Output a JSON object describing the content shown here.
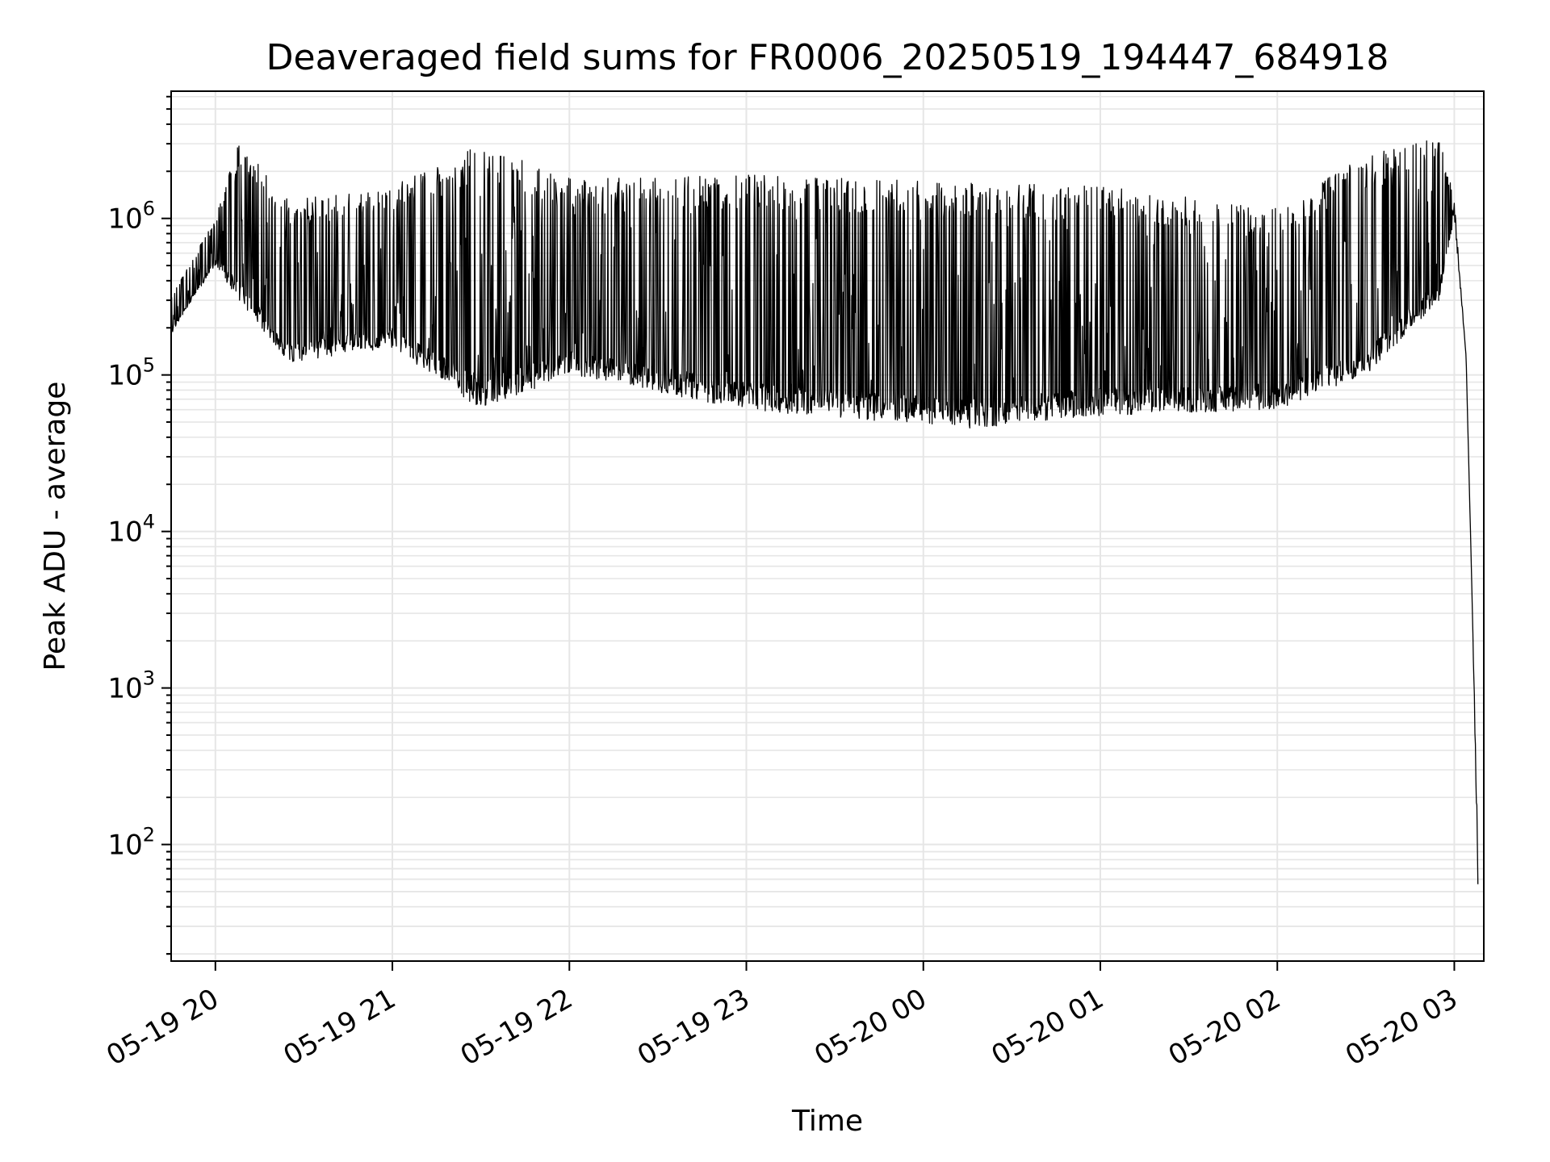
{
  "chart_data": {
    "type": "line",
    "title": "Deaveraged field sums for FR0006_20250519_194447_684918",
    "xlabel": "Time",
    "ylabel": "Peak ADU - average",
    "x_scale": "time",
    "y_scale": "log",
    "xlim": [
      "2025-05-19 19:45",
      "2025-05-20 03:10"
    ],
    "ylim": [
      18,
      6500000
    ],
    "grid": true,
    "line_color": "#000000",
    "x_ticks": [
      {
        "value": "2025-05-19 20:00",
        "label": "05-19 20"
      },
      {
        "value": "2025-05-19 21:00",
        "label": "05-19 21"
      },
      {
        "value": "2025-05-19 22:00",
        "label": "05-19 22"
      },
      {
        "value": "2025-05-19 23:00",
        "label": "05-19 23"
      },
      {
        "value": "2025-05-20 00:00",
        "label": "05-20 00"
      },
      {
        "value": "2025-05-20 01:00",
        "label": "05-20 01"
      },
      {
        "value": "2025-05-20 02:00",
        "label": "05-20 02"
      },
      {
        "value": "2025-05-20 03:00",
        "label": "05-20 03"
      }
    ],
    "y_ticks": [
      {
        "value": 100,
        "base": "10",
        "exp": "2"
      },
      {
        "value": 1000,
        "base": "10",
        "exp": "3"
      },
      {
        "value": 10000,
        "base": "10",
        "exp": "4"
      },
      {
        "value": 100000,
        "base": "10",
        "exp": "5"
      },
      {
        "value": 1000000,
        "base": "10",
        "exp": "6"
      }
    ],
    "series": [
      {
        "description_points": [
          {
            "x": "2025-05-19 19:45",
            "y_low": 180000,
            "y_high": 320000
          },
          {
            "x": "2025-05-19 19:52",
            "y_low": 300000,
            "y_high": 550000
          },
          {
            "x": "2025-05-19 20:00",
            "y_low": 500000,
            "y_high": 1000000
          },
          {
            "x": "2025-05-19 20:08",
            "y_low": 300000,
            "y_high": 3100000
          },
          {
            "x": "2025-05-19 20:25",
            "y_low": 120000,
            "y_high": 1300000
          },
          {
            "x": "2025-05-19 21:00",
            "y_low": 150000,
            "y_high": 1600000
          },
          {
            "x": "2025-05-19 21:30",
            "y_low": 60000,
            "y_high": 3000000
          },
          {
            "x": "2025-05-19 22:00",
            "y_low": 100000,
            "y_high": 1800000
          },
          {
            "x": "2025-05-19 23:00",
            "y_low": 60000,
            "y_high": 1900000
          },
          {
            "x": "2025-05-20 00:15",
            "y_low": 45000,
            "y_high": 1700000
          },
          {
            "x": "2025-05-20 01:00",
            "y_low": 55000,
            "y_high": 1600000
          },
          {
            "x": "2025-05-20 02:00",
            "y_low": 60000,
            "y_high": 1200000
          },
          {
            "x": "2025-05-20 02:30",
            "y_low": 100000,
            "y_high": 2500000
          },
          {
            "x": "2025-05-20 02:55",
            "y_low": 300000,
            "y_high": 3500000
          },
          {
            "x": "2025-05-20 03:00",
            "y_low": 1000000,
            "y_high": 1300000
          },
          {
            "x": "2025-05-20 03:04",
            "y_low": 130000,
            "y_high": 130000
          },
          {
            "x": "2025-05-20 03:06",
            "y_low": 4000,
            "y_high": 4000
          },
          {
            "x": "2025-05-20 03:08",
            "y_low": 55,
            "y_high": 120
          }
        ]
      }
    ]
  }
}
